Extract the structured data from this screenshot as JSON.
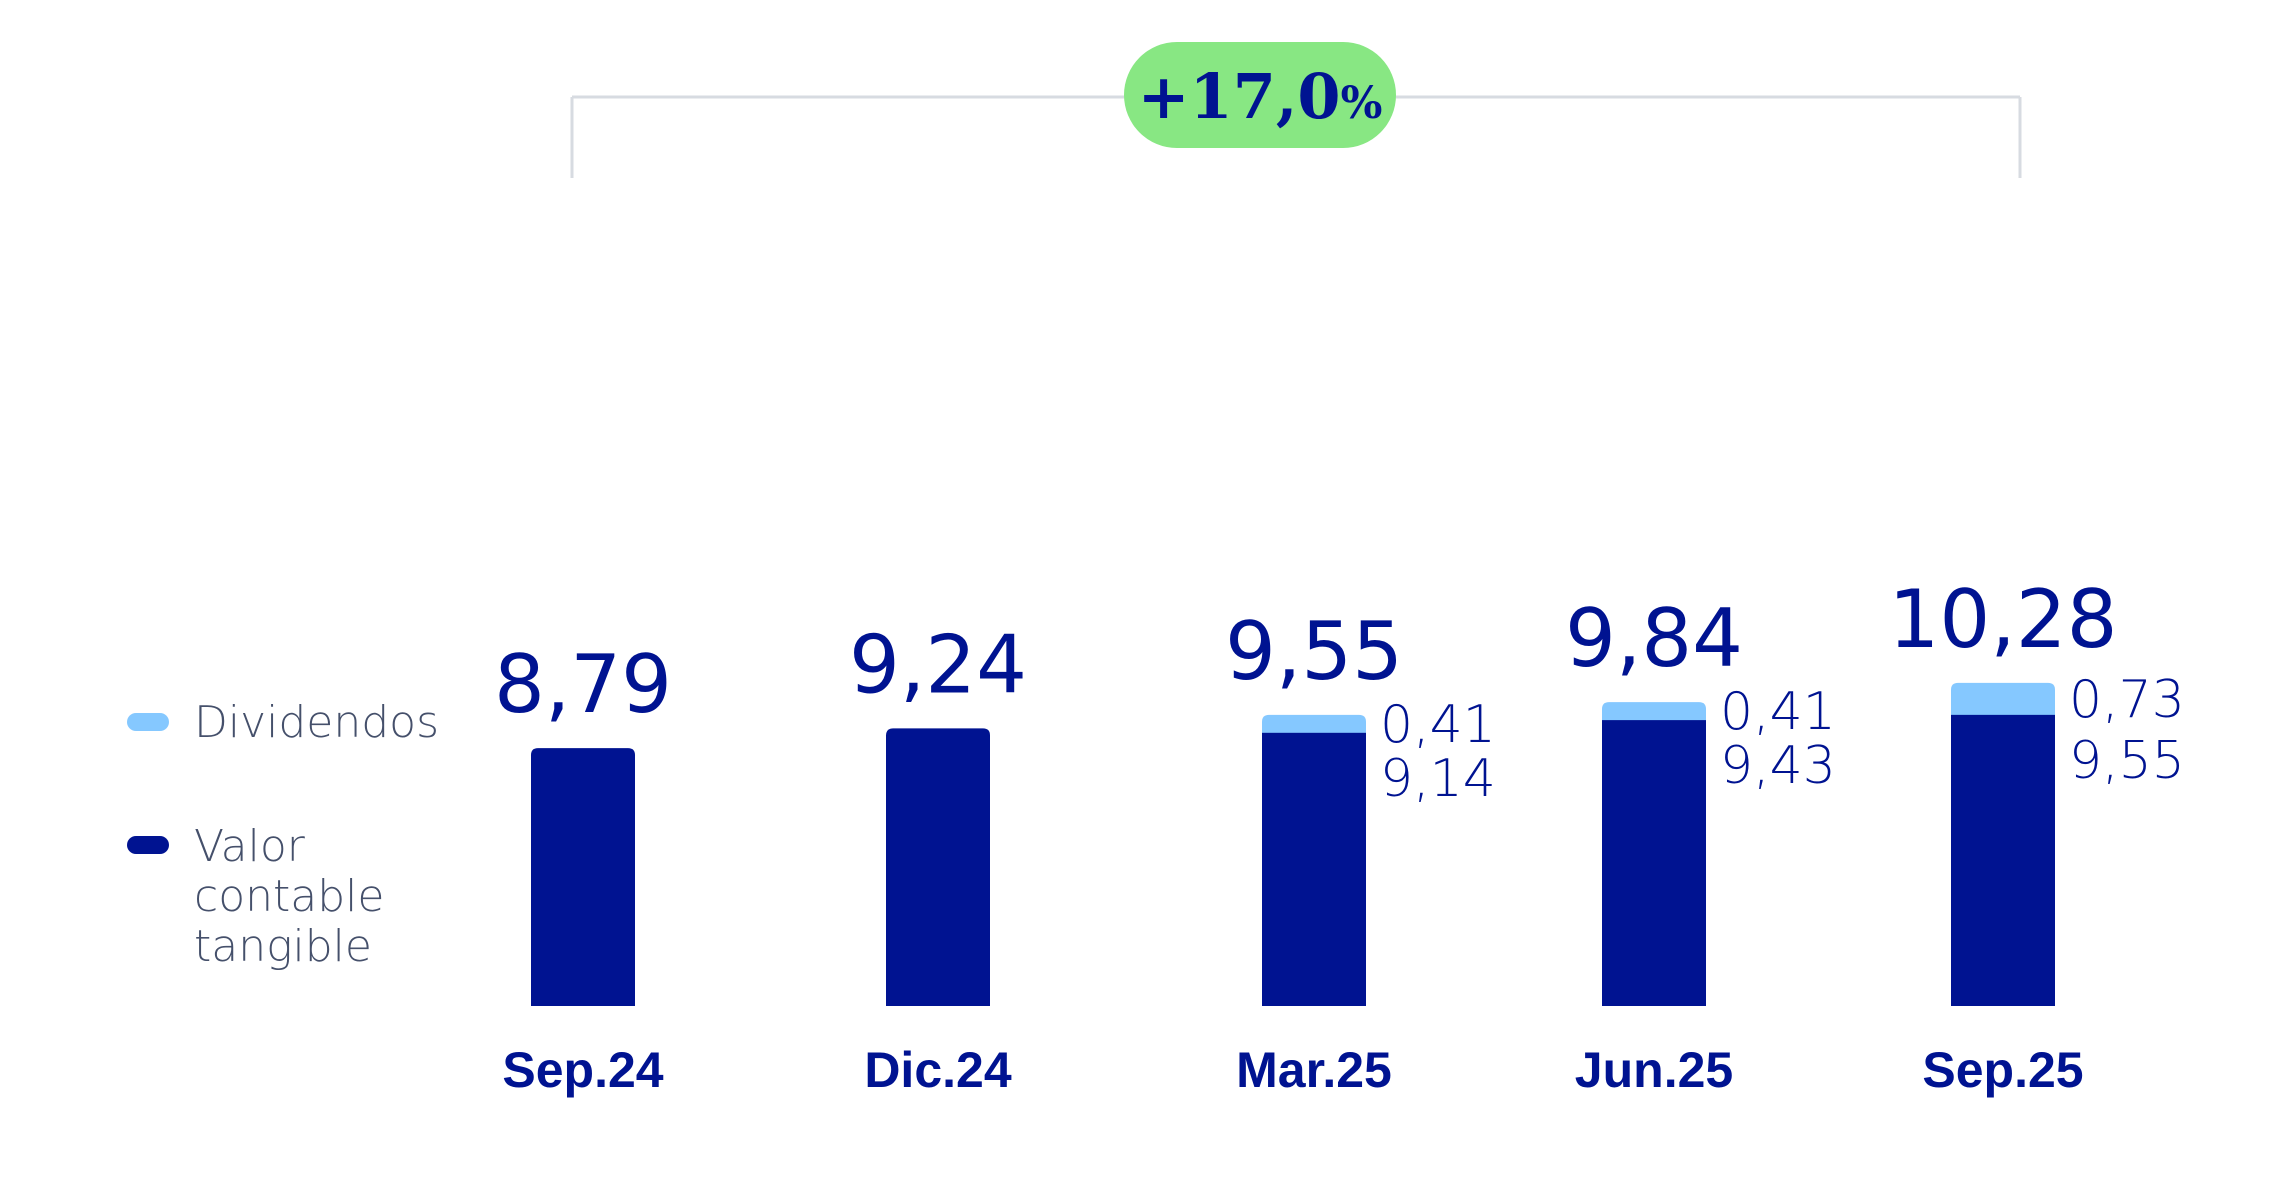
{
  "colors": {
    "valor": "#001391",
    "dividendos": "#85c8ff",
    "badge": "#88e783",
    "bracket": "#d7dbe1",
    "legend_text": "#45506b"
  },
  "growth": {
    "value": "+17,0",
    "unit": "%"
  },
  "legend": [
    {
      "key": "dividendos",
      "lines": [
        "Dividendos"
      ]
    },
    {
      "key": "valor",
      "lines": [
        "Valor",
        "contable",
        "tangible"
      ]
    }
  ],
  "chart_data": {
    "type": "bar",
    "stacked": true,
    "categories": [
      "Sep.24",
      "Dic.24",
      "Mar.25",
      "Jun.25",
      "Sep.25"
    ],
    "series": [
      {
        "name": "Valor contable tangible",
        "values": [
          8.79,
          9.24,
          9.14,
          9.43,
          9.55
        ]
      },
      {
        "name": "Dividendos",
        "values": [
          0,
          0,
          0.41,
          0.41,
          0.73
        ]
      }
    ],
    "totals": [
      8.79,
      9.24,
      9.55,
      9.84,
      10.28
    ],
    "total_labels": [
      "8,79",
      "9,24",
      "9,55",
      "9,84",
      "10,28"
    ],
    "segment_labels": [
      {
        "valor": "",
        "dividendos": ""
      },
      {
        "valor": "",
        "dividendos": ""
      },
      {
        "valor": "9,14",
        "dividendos": "0,41"
      },
      {
        "valor": "9,43",
        "dividendos": "0,41"
      },
      {
        "valor": "9,55",
        "dividendos": "0,73"
      }
    ],
    "title": "",
    "xlabel": "",
    "ylabel": "",
    "legend_position": "left",
    "grid": false
  }
}
